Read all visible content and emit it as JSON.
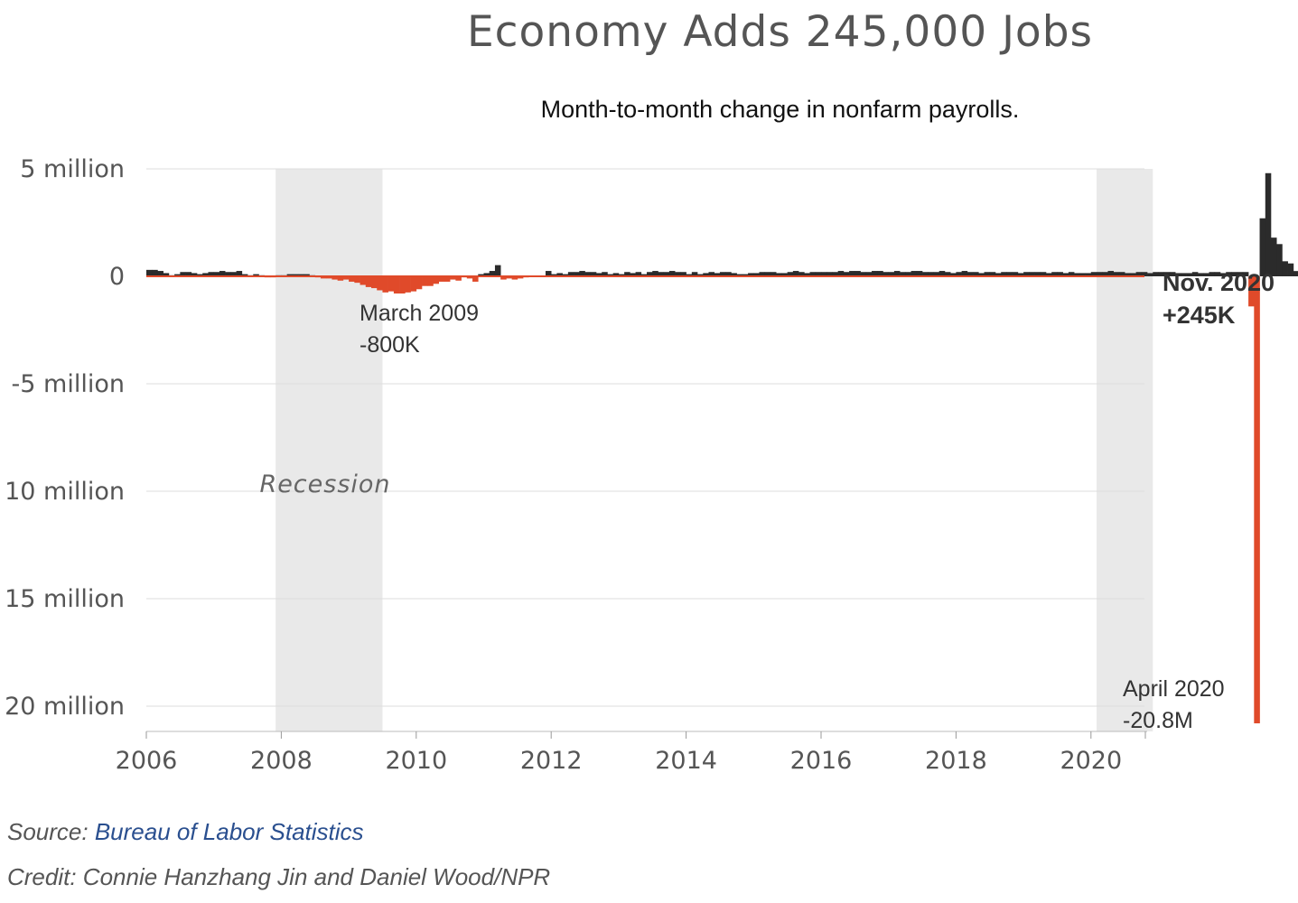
{
  "header": {
    "title": "Economy Adds 245,000 Jobs",
    "subtitle": "Month-to-month change in nonfarm payrolls."
  },
  "footer": {
    "source_prefix": "Source: ",
    "source_link": "Bureau of Labor Statistics",
    "credit": "Credit: Connie Hanzhang Jin and Daniel Wood/NPR"
  },
  "colors": {
    "positive": "#2b2b2b",
    "negative": "#e04a2a",
    "recession": "#e9e9e9",
    "grid": "#dddddd",
    "axis_text": "#555555"
  },
  "chart_data": {
    "type": "bar",
    "x_start": "2006-01",
    "unit": "jobs (thousands)",
    "ylim": [
      -21000,
      5000
    ],
    "yticks": [
      {
        "value": 5000,
        "label": "5 million"
      },
      {
        "value": 0,
        "label": "0"
      },
      {
        "value": -5000,
        "label": "-5 million"
      },
      {
        "value": -10000,
        "label": "10 million"
      },
      {
        "value": -15000,
        "label": "15 million"
      },
      {
        "value": -20000,
        "label": "20 million"
      }
    ],
    "xticks": [
      "2006",
      "2008",
      "2010",
      "2012",
      "2014",
      "2016",
      "2018",
      "2020"
    ],
    "grid": true,
    "recessions": [
      {
        "start": "2007-12",
        "end": "2009-06",
        "label": "Recession"
      },
      {
        "start": "2020-02",
        "end": "2020-11",
        "label": ""
      }
    ],
    "annotations": [
      {
        "line1": "March 2009",
        "line2": "-800K"
      },
      {
        "line1": "April 2020",
        "line2": "-20.8M"
      },
      {
        "line1": "Nov. 2020",
        "line2": "+245K"
      }
    ],
    "values": [
      300,
      300,
      250,
      150,
      50,
      100,
      200,
      200,
      150,
      100,
      150,
      200,
      200,
      250,
      200,
      200,
      250,
      100,
      50,
      100,
      50,
      -50,
      -50,
      50,
      50,
      100,
      100,
      100,
      100,
      50,
      -50,
      -100,
      -100,
      -150,
      -200,
      -150,
      -250,
      -300,
      -400,
      -500,
      -550,
      -650,
      -750,
      -700,
      -800,
      -800,
      -750,
      -700,
      -600,
      -450,
      -450,
      -350,
      -250,
      -250,
      -150,
      -200,
      -50,
      -100,
      -250,
      100,
      150,
      250,
      520,
      -150,
      -100,
      -150,
      -100,
      -50,
      0,
      0,
      0,
      250,
      100,
      150,
      100,
      200,
      200,
      250,
      200,
      200,
      150,
      200,
      100,
      150,
      100,
      200,
      150,
      200,
      100,
      200,
      250,
      200,
      200,
      250,
      200,
      200,
      100,
      200,
      100,
      150,
      200,
      150,
      200,
      200,
      150,
      100,
      100,
      150,
      150,
      200,
      200,
      200,
      150,
      150,
      200,
      250,
      200,
      150,
      200,
      200,
      200,
      200,
      200,
      250,
      200,
      250,
      250,
      200,
      200,
      250,
      250,
      200,
      200,
      250,
      200,
      200,
      250,
      250,
      200,
      200,
      200,
      250,
      200,
      150,
      200,
      250,
      200,
      200,
      150,
      200,
      200,
      150,
      200,
      200,
      200,
      150,
      200,
      200,
      200,
      200,
      150,
      200,
      200,
      150,
      200,
      150,
      150,
      150,
      200,
      200,
      200,
      250,
      200,
      200,
      150,
      150,
      200,
      200,
      150,
      200,
      200,
      200,
      200,
      150,
      150,
      150,
      200,
      150,
      150,
      200,
      200,
      150,
      200,
      200,
      200,
      200,
      -1400,
      -20800,
      2700,
      4800,
      1800,
      1500,
      700,
      600,
      245
    ]
  }
}
